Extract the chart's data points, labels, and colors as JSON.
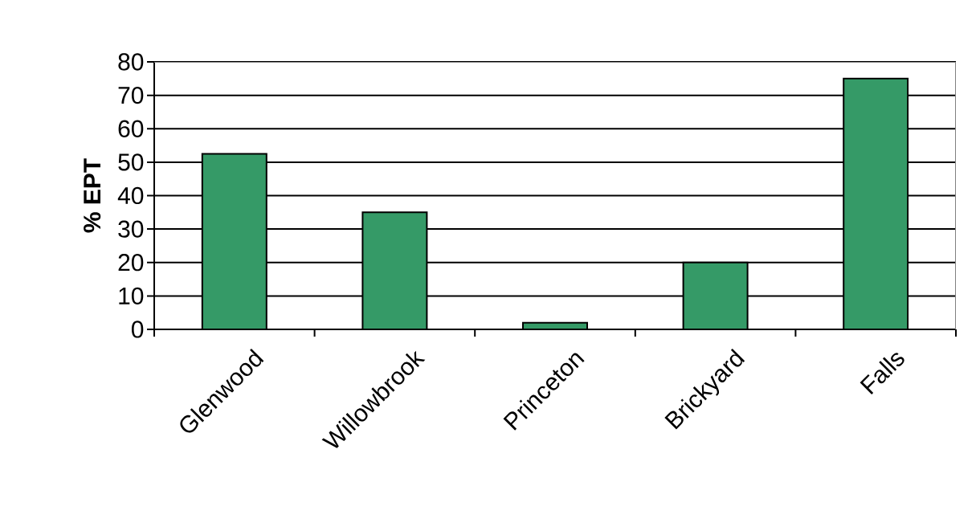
{
  "chart_data": {
    "type": "bar",
    "ylabel": "% EPT",
    "categories": [
      "Glenwood",
      "Willowbrook",
      "Princeton",
      "Brickyard",
      "Falls"
    ],
    "values": [
      52.5,
      35,
      2,
      20,
      75
    ],
    "color": "#359a67",
    "ylim": [
      0,
      80
    ],
    "yticks": [
      0,
      10,
      20,
      30,
      40,
      50,
      60,
      70,
      80
    ],
    "grid": "y"
  }
}
